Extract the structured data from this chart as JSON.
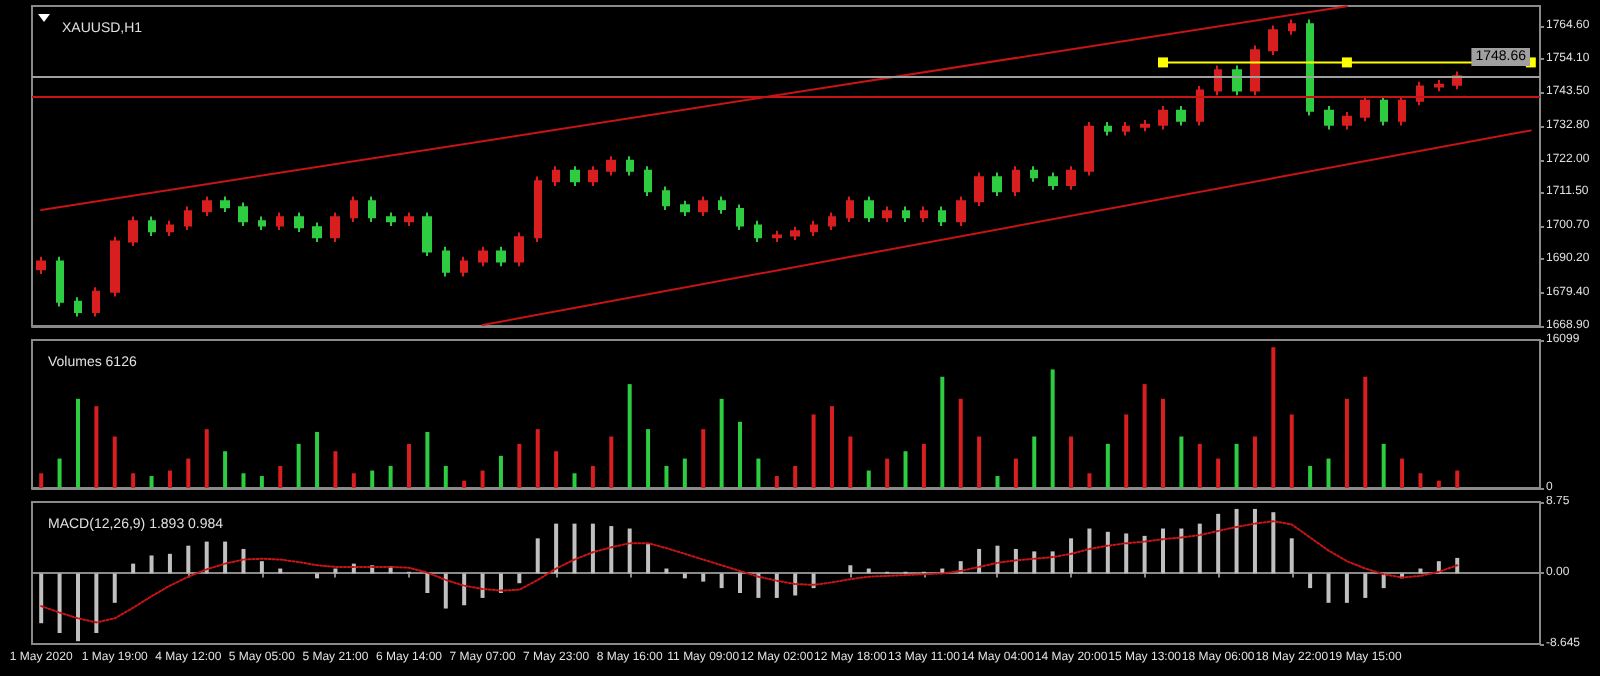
{
  "chart_data": [
    {
      "type": "candlestick",
      "title": "XAUUSD,H1",
      "categories": [
        null,
        null,
        null,
        null,
        null,
        null,
        null,
        null,
        null,
        null,
        null,
        null,
        null,
        null,
        null,
        null,
        null,
        null,
        null,
        null,
        null,
        null,
        null,
        null,
        null,
        null,
        null,
        null,
        null,
        null,
        null,
        null,
        null,
        null,
        null,
        null,
        null,
        null,
        null,
        null,
        null,
        null,
        null,
        null,
        null,
        null,
        null,
        null,
        null,
        null,
        null,
        null,
        null,
        null,
        null,
        null,
        null,
        null,
        null,
        null,
        null,
        null,
        null,
        null,
        null,
        null,
        null,
        null,
        null,
        null,
        null,
        null,
        null,
        null,
        null,
        null,
        null,
        null,
        null,
        null,
        null,
        null
      ],
      "ohlc": [
        [
          1687.0,
          1691.0,
          1685.5,
          1689.5
        ],
        [
          1689.5,
          1691.0,
          1675.1,
          1676.6
        ],
        [
          1676.6,
          1678.1,
          1671.9,
          1673.4
        ],
        [
          1673.4,
          1681.3,
          1671.9,
          1679.8
        ],
        [
          1679.8,
          1697.4,
          1678.3,
          1695.9
        ],
        [
          1695.9,
          1703.8,
          1694.4,
          1702.3
        ],
        [
          1702.3,
          1703.8,
          1697.6,
          1699.1
        ],
        [
          1699.1,
          1702.5,
          1697.6,
          1701.0
        ],
        [
          1701.0,
          1707.0,
          1699.5,
          1705.5
        ],
        [
          1705.5,
          1710.2,
          1704.0,
          1708.7
        ],
        [
          1708.7,
          1710.2,
          1705.3,
          1706.8
        ],
        [
          1706.8,
          1708.3,
          1700.8,
          1702.3
        ],
        [
          1702.3,
          1703.8,
          1699.5,
          1701.0
        ],
        [
          1701.0,
          1705.1,
          1699.5,
          1703.6
        ],
        [
          1703.6,
          1705.1,
          1698.9,
          1700.4
        ],
        [
          1700.4,
          1701.9,
          1695.7,
          1697.2
        ],
        [
          1697.2,
          1705.1,
          1695.7,
          1703.6
        ],
        [
          1703.6,
          1710.2,
          1702.1,
          1708.7
        ],
        [
          1708.7,
          1710.2,
          1702.1,
          1703.6
        ],
        [
          1703.6,
          1705.1,
          1700.8,
          1702.3
        ],
        [
          1702.3,
          1705.1,
          1700.8,
          1703.6
        ],
        [
          1703.6,
          1705.1,
          1691.2,
          1692.7
        ],
        [
          1692.7,
          1694.2,
          1684.7,
          1686.2
        ],
        [
          1686.2,
          1691.0,
          1684.7,
          1689.5
        ],
        [
          1689.5,
          1694.2,
          1688.0,
          1692.7
        ],
        [
          1692.7,
          1694.2,
          1688.0,
          1689.5
        ],
        [
          1689.5,
          1698.7,
          1688.0,
          1697.2
        ],
        [
          1697.2,
          1716.6,
          1695.7,
          1715.1
        ],
        [
          1715.1,
          1719.9,
          1713.6,
          1718.4
        ],
        [
          1718.4,
          1719.9,
          1713.6,
          1715.1
        ],
        [
          1715.1,
          1719.9,
          1713.6,
          1718.4
        ],
        [
          1718.4,
          1723.1,
          1716.9,
          1721.6
        ],
        [
          1721.6,
          1723.1,
          1716.9,
          1718.4
        ],
        [
          1718.4,
          1719.9,
          1710.4,
          1711.9
        ],
        [
          1711.9,
          1713.4,
          1705.9,
          1707.4
        ],
        [
          1707.4,
          1708.9,
          1704.0,
          1705.5
        ],
        [
          1705.5,
          1710.2,
          1704.0,
          1708.7
        ],
        [
          1708.7,
          1710.2,
          1704.7,
          1706.2
        ],
        [
          1706.2,
          1707.7,
          1699.5,
          1701.0
        ],
        [
          1701.0,
          1702.5,
          1695.7,
          1697.2
        ],
        [
          1697.2,
          1699.3,
          1695.7,
          1697.8
        ],
        [
          1697.8,
          1700.6,
          1696.3,
          1699.1
        ],
        [
          1699.1,
          1702.5,
          1697.6,
          1701.0
        ],
        [
          1701.0,
          1705.1,
          1699.5,
          1703.6
        ],
        [
          1703.6,
          1710.2,
          1702.1,
          1708.7
        ],
        [
          1708.7,
          1710.2,
          1702.1,
          1703.6
        ],
        [
          1703.6,
          1707.0,
          1702.1,
          1705.5
        ],
        [
          1705.5,
          1707.0,
          1702.1,
          1703.6
        ],
        [
          1703.6,
          1707.0,
          1702.1,
          1705.5
        ],
        [
          1705.5,
          1707.0,
          1700.8,
          1702.3
        ],
        [
          1702.3,
          1710.2,
          1700.8,
          1708.7
        ],
        [
          1708.7,
          1717.9,
          1707.2,
          1716.4
        ],
        [
          1716.4,
          1717.9,
          1710.4,
          1711.9
        ],
        [
          1711.9,
          1719.9,
          1710.4,
          1718.4
        ],
        [
          1718.4,
          1719.9,
          1714.9,
          1716.4
        ],
        [
          1716.4,
          1717.9,
          1712.4,
          1713.9
        ],
        [
          1713.9,
          1719.9,
          1712.4,
          1718.4
        ],
        [
          1718.4,
          1734.0,
          1716.9,
          1732.5
        ],
        [
          1732.5,
          1734.0,
          1729.7,
          1731.2
        ],
        [
          1731.2,
          1734.0,
          1729.7,
          1732.5
        ],
        [
          1732.5,
          1734.6,
          1731.0,
          1733.1
        ],
        [
          1733.1,
          1739.1,
          1731.6,
          1737.6
        ],
        [
          1737.6,
          1739.1,
          1732.9,
          1734.4
        ],
        [
          1734.4,
          1745.5,
          1732.9,
          1744.0
        ],
        [
          1744.0,
          1752.0,
          1742.5,
          1750.5
        ],
        [
          1750.5,
          1752.0,
          1742.5,
          1744.0
        ],
        [
          1744.0,
          1758.4,
          1742.5,
          1756.9
        ],
        [
          1756.9,
          1764.8,
          1755.4,
          1763.3
        ],
        [
          1763.3,
          1766.7,
          1761.8,
          1765.2
        ],
        [
          1765.2,
          1766.7,
          1736.1,
          1737.6
        ],
        [
          1737.6,
          1739.1,
          1731.6,
          1733.1
        ],
        [
          1733.1,
          1737.2,
          1731.6,
          1735.7
        ],
        [
          1735.7,
          1742.3,
          1734.2,
          1740.8
        ],
        [
          1740.8,
          1742.3,
          1732.9,
          1734.4
        ],
        [
          1734.4,
          1742.3,
          1732.9,
          1740.8
        ],
        [
          1740.8,
          1746.8,
          1739.3,
          1745.3
        ],
        [
          1745.3,
          1747.4,
          1743.8,
          1745.9
        ],
        [
          1745.9,
          1750.1,
          1744.4,
          1748.6
        ],
        null,
        null,
        null,
        null
      ],
      "colors": [
        "#d81e1e",
        "#2ecc40",
        "#2ecc40",
        "#d81e1e",
        "#d81e1e",
        "#d81e1e",
        "#2ecc40",
        "#d81e1e",
        "#d81e1e",
        "#d81e1e",
        "#2ecc40",
        "#2ecc40",
        "#2ecc40",
        "#d81e1e",
        "#2ecc40",
        "#2ecc40",
        "#d81e1e",
        "#d81e1e",
        "#2ecc40",
        "#2ecc40",
        "#d81e1e",
        "#2ecc40",
        "#2ecc40",
        "#d81e1e",
        "#d81e1e",
        "#2ecc40",
        "#d81e1e",
        "#d81e1e",
        "#d81e1e",
        "#2ecc40",
        "#d81e1e",
        "#d81e1e",
        "#2ecc40",
        "#2ecc40",
        "#2ecc40",
        "#2ecc40",
        "#d81e1e",
        "#2ecc40",
        "#2ecc40",
        "#2ecc40",
        "#d81e1e",
        "#d81e1e",
        "#d81e1e",
        "#d81e1e",
        "#d81e1e",
        "#2ecc40",
        "#d81e1e",
        "#2ecc40",
        "#d81e1e",
        "#2ecc40",
        "#d81e1e",
        "#d81e1e",
        "#2ecc40",
        "#d81e1e",
        "#2ecc40",
        "#2ecc40",
        "#d81e1e",
        "#d81e1e",
        "#2ecc40",
        "#d81e1e",
        "#d81e1e",
        "#d81e1e",
        "#2ecc40",
        "#d81e1e",
        "#d81e1e",
        "#2ecc40",
        "#d81e1e",
        "#d81e1e",
        "#d81e1e",
        "#2ecc40",
        "#2ecc40",
        "#d81e1e",
        "#d81e1e",
        "#2ecc40",
        "#d81e1e",
        "#d81e1e",
        "#d81e1e",
        "#d81e1e",
        null,
        null,
        null,
        null
      ],
      "series": [
        {
          "type": "line",
          "color": "#c81414",
          "marker": "none",
          "values": [
            1705.9,
            null,
            null,
            null,
            null,
            null,
            null,
            null,
            null,
            null,
            null,
            null,
            null,
            null,
            null,
            null,
            null,
            null,
            null,
            null,
            null,
            null,
            null,
            null,
            null,
            null,
            null,
            null,
            null,
            null,
            null,
            null,
            null,
            null,
            null,
            null,
            null,
            null,
            null,
            null,
            null,
            null,
            null,
            null,
            null,
            null,
            null,
            null,
            null,
            null,
            null,
            null,
            null,
            null,
            null,
            null,
            null,
            null,
            null,
            null,
            null,
            null,
            null,
            null,
            null,
            null,
            null,
            null,
            null,
            null,
            null,
            1770.9,
            null,
            null,
            null,
            null,
            null,
            null,
            null,
            null,
            null,
            null
          ]
        },
        {
          "type": "line",
          "color": "#c81414",
          "marker": "none",
          "values": [
            null,
            null,
            null,
            null,
            null,
            null,
            null,
            null,
            null,
            null,
            null,
            null,
            null,
            null,
            null,
            null,
            null,
            null,
            null,
            null,
            null,
            null,
            null,
            null,
            1669.2,
            null,
            null,
            null,
            null,
            null,
            null,
            null,
            null,
            null,
            null,
            null,
            null,
            null,
            null,
            null,
            null,
            null,
            null,
            null,
            null,
            null,
            null,
            null,
            null,
            null,
            null,
            null,
            null,
            null,
            null,
            null,
            null,
            null,
            null,
            null,
            null,
            null,
            null,
            null,
            null,
            null,
            null,
            null,
            null,
            null,
            null,
            null,
            null,
            null,
            null,
            null,
            null,
            null,
            null,
            null,
            null,
            1731.3
          ]
        },
        {
          "type": "line",
          "color": "#ffff00",
          "marker": "square",
          "values": [
            null,
            null,
            null,
            null,
            null,
            null,
            null,
            null,
            null,
            null,
            null,
            null,
            null,
            null,
            null,
            null,
            null,
            null,
            null,
            null,
            null,
            null,
            null,
            null,
            null,
            null,
            null,
            null,
            null,
            null,
            null,
            null,
            null,
            null,
            null,
            null,
            null,
            null,
            null,
            null,
            null,
            null,
            null,
            null,
            null,
            null,
            null,
            null,
            null,
            null,
            null,
            null,
            null,
            null,
            null,
            null,
            null,
            null,
            null,
            null,
            null,
            1753.0,
            null,
            null,
            null,
            null,
            null,
            null,
            null,
            null,
            null,
            1753.0,
            null,
            null,
            null,
            null,
            null,
            null,
            null,
            null,
            null,
            1753.0
          ]
        }
      ],
      "ylim": [
        1668.9,
        1771.0
      ],
      "yticks": [
        {
          "value": 1668.9,
          "label": "1668.90"
        },
        {
          "value": 1679.4,
          "label": "1679.40"
        },
        {
          "value": 1690.2,
          "label": "1690.20"
        },
        {
          "value": 1700.7,
          "label": "1700.70"
        },
        {
          "value": 1711.5,
          "label": "1711.50"
        },
        {
          "value": 1722.0,
          "label": "1722.00"
        },
        {
          "value": 1732.8,
          "label": "1732.80"
        },
        {
          "value": 1743.5,
          "label": "1743.50"
        },
        {
          "value": 1754.1,
          "label": "1754.10"
        },
        {
          "value": 1764.6,
          "label": "1764.60"
        }
      ],
      "ref_lines": [
        {
          "axis": "y",
          "value": 1748.66,
          "label": "1748.66",
          "color": "#a0a0a0"
        },
        {
          "axis": "y",
          "value": 1742.1,
          "color": "#c81414"
        }
      ],
      "tick_labels": "y"
    },
    {
      "type": "bar",
      "title": "Volumes 6126",
      "categories": [
        null,
        null,
        null,
        null,
        null,
        null,
        null,
        null,
        null,
        null,
        null,
        null,
        null,
        null,
        null,
        null,
        null,
        null,
        null,
        null,
        null,
        null,
        null,
        null,
        null,
        null,
        null,
        null,
        null,
        null,
        null,
        null,
        null,
        null,
        null,
        null,
        null,
        null,
        null,
        null,
        null,
        null,
        null,
        null,
        null,
        null,
        null,
        null,
        null,
        null,
        null,
        null,
        null,
        null,
        null,
        null,
        null,
        null,
        null,
        null,
        null,
        null,
        null,
        null,
        null,
        null,
        null,
        null,
        null,
        null,
        null,
        null,
        null,
        null,
        null,
        null,
        null,
        null,
        null,
        null,
        null,
        null
      ],
      "values": [
        1600,
        3200,
        9700,
        8900,
        5600,
        1600,
        1300,
        1900,
        3200,
        6400,
        4000,
        1600,
        1300,
        2400,
        4800,
        6100,
        4000,
        1600,
        1900,
        2400,
        4800,
        6100,
        2400,
        800,
        1900,
        3500,
        4800,
        6400,
        4000,
        1600,
        2400,
        5600,
        11300,
        6400,
        2400,
        3200,
        6400,
        9700,
        7200,
        3200,
        1300,
        2400,
        8000,
        8900,
        5600,
        1900,
        3200,
        4000,
        4800,
        12100,
        9700,
        5600,
        1300,
        3200,
        5600,
        12900,
        5600,
        1600,
        4800,
        8000,
        11300,
        9700,
        5600,
        4800,
        3200,
        4800,
        5600,
        15300,
        8000,
        2400,
        3200,
        9700,
        12100,
        4800,
        3200,
        1600,
        800,
        1900,
        null,
        null,
        null,
        null
      ],
      "colors": [
        "#d81e1e",
        "#2ecc40",
        "#2ecc40",
        "#d81e1e",
        "#d81e1e",
        "#d81e1e",
        "#2ecc40",
        "#d81e1e",
        "#d81e1e",
        "#d81e1e",
        "#2ecc40",
        "#2ecc40",
        "#2ecc40",
        "#d81e1e",
        "#2ecc40",
        "#2ecc40",
        "#d81e1e",
        "#d81e1e",
        "#2ecc40",
        "#2ecc40",
        "#d81e1e",
        "#2ecc40",
        "#2ecc40",
        "#d81e1e",
        "#d81e1e",
        "#2ecc40",
        "#d81e1e",
        "#d81e1e",
        "#d81e1e",
        "#2ecc40",
        "#d81e1e",
        "#d81e1e",
        "#2ecc40",
        "#2ecc40",
        "#2ecc40",
        "#2ecc40",
        "#d81e1e",
        "#2ecc40",
        "#2ecc40",
        "#2ecc40",
        "#d81e1e",
        "#d81e1e",
        "#d81e1e",
        "#d81e1e",
        "#d81e1e",
        "#2ecc40",
        "#d81e1e",
        "#2ecc40",
        "#d81e1e",
        "#2ecc40",
        "#d81e1e",
        "#d81e1e",
        "#2ecc40",
        "#d81e1e",
        "#2ecc40",
        "#2ecc40",
        "#d81e1e",
        "#d81e1e",
        "#2ecc40",
        "#d81e1e",
        "#d81e1e",
        "#d81e1e",
        "#2ecc40",
        "#d81e1e",
        "#d81e1e",
        "#2ecc40",
        "#d81e1e",
        "#d81e1e",
        "#d81e1e",
        "#2ecc40",
        "#2ecc40",
        "#d81e1e",
        "#d81e1e",
        "#2ecc40",
        "#d81e1e",
        "#d81e1e",
        "#d81e1e",
        "#d81e1e",
        null,
        null,
        null,
        null
      ],
      "ylim": [
        0,
        16099
      ],
      "yticks": [
        0,
        16099
      ],
      "tick_labels": "y"
    },
    {
      "type": "bar",
      "title": "MACD(12,26,9) 1.893 0.984",
      "categories": [
        "1 May 2020",
        null,
        null,
        null,
        "1 May 19:00",
        null,
        null,
        null,
        "4 May 12:00",
        null,
        null,
        null,
        "5 May 05:00",
        null,
        null,
        null,
        "5 May 21:00",
        null,
        null,
        null,
        "6 May 14:00",
        null,
        null,
        null,
        "7 May 07:00",
        null,
        null,
        null,
        "7 May 23:00",
        null,
        null,
        null,
        "8 May 16:00",
        null,
        null,
        null,
        "11 May 09:00",
        null,
        null,
        null,
        "12 May 02:00",
        null,
        null,
        null,
        "12 May 18:00",
        null,
        null,
        null,
        "13 May 11:00",
        null,
        null,
        null,
        "14 May 04:00",
        null,
        null,
        null,
        "14 May 20:00",
        null,
        null,
        null,
        "15 May 13:00",
        null,
        null,
        null,
        "18 May 06:00",
        null,
        null,
        null,
        "18 May 22:00",
        null,
        null,
        null,
        "19 May 15:00",
        null,
        null,
        null,
        null,
        null,
        null,
        null,
        null,
        null
      ],
      "series": [
        {
          "color": "#c0c0c0",
          "values": [
            -6.1,
            -7.3,
            -8.3,
            -7.3,
            -3.6,
            1.2,
            2.2,
            2.4,
            3.4,
            3.9,
            3.9,
            3.0,
            1.5,
            0.6,
            0,
            -0.6,
            0.6,
            1.2,
            1.0,
            0.9,
            0.2,
            -2.4,
            -4.3,
            -3.9,
            -3.0,
            -2.4,
            -1.2,
            4.3,
            6.1,
            6.1,
            6.1,
            5.8,
            5.5,
            3.6,
            0.6,
            -0.6,
            -1.0,
            -1.8,
            -2.4,
            -3.0,
            -3.0,
            -2.7,
            -1.8,
            0,
            1.0,
            0.6,
            0.2,
            0.2,
            0.2,
            0.6,
            1.5,
            3.0,
            3.4,
            3.0,
            2.7,
            2.7,
            4.3,
            5.5,
            5.1,
            4.9,
            4.6,
            5.5,
            5.5,
            6.1,
            7.3,
            7.9,
            7.9,
            7.5,
            4.3,
            -1.8,
            -3.6,
            -3.6,
            -3.0,
            -1.8,
            -0.6,
            0.6,
            1.5,
            1.9,
            null,
            null,
            null,
            null
          ]
        },
        {
          "type": "line",
          "color": "#c81414",
          "line_style": "dotted",
          "marker": "none",
          "values": [
            -4.0,
            -4.8,
            -5.5,
            -6.0,
            -5.5,
            -4.2,
            -2.8,
            -1.5,
            -0.4,
            0.5,
            1.2,
            1.7,
            1.8,
            1.7,
            1.4,
            1.0,
            0.8,
            0.8,
            0.8,
            0.8,
            0.7,
            0.1,
            -0.8,
            -1.5,
            -1.9,
            -2.1,
            -2.0,
            -0.8,
            0.6,
            1.7,
            2.6,
            3.2,
            3.7,
            3.7,
            3.1,
            2.4,
            1.7,
            1.0,
            0.3,
            -0.4,
            -0.9,
            -1.3,
            -1.4,
            -1.1,
            -0.7,
            -0.4,
            -0.3,
            -0.2,
            -0.1,
            0,
            0.3,
            0.8,
            1.3,
            1.6,
            1.8,
            2.0,
            2.4,
            3.0,
            3.4,
            3.7,
            3.9,
            4.2,
            4.4,
            4.7,
            5.2,
            5.7,
            6.1,
            6.4,
            6.0,
            4.4,
            2.8,
            1.5,
            0.6,
            -0.1,
            -0.5,
            -0.3,
            0.2,
            1.0,
            null,
            null,
            null,
            null
          ]
        }
      ],
      "ylim": [
        -8.645,
        8.75
      ],
      "yticks": [
        -8.645,
        {
          "value": 0,
          "label": "0.00"
        },
        8.75
      ]
    }
  ]
}
